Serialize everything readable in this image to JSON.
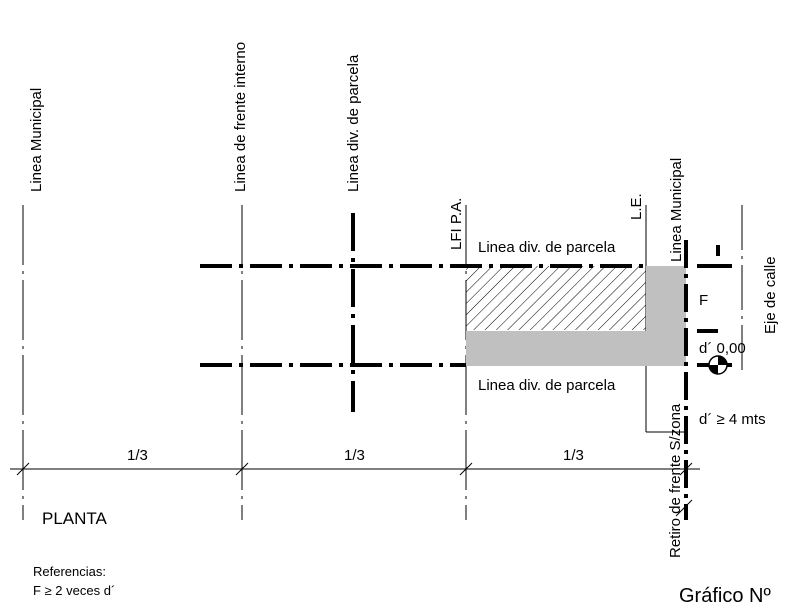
{
  "diagram": {
    "vertical_labels": {
      "linea_municipal_left": "Linea Municipal",
      "linea_frente_interno": "Linea de frente interno",
      "linea_div_parcela_top": "Linea div. de parcela",
      "lfi_pa": "LFI P.A.",
      "le": "L.E.",
      "linea_municipal_right": "Linea Municipal",
      "eje_de_calle": "Eje de calle",
      "retiro_frente": "Retiro de frente S/zona"
    },
    "horizontal_labels": {
      "linea_div_parcela_upper": "Linea div. de parcela",
      "linea_div_parcela_lower": "Linea div. de parcela",
      "f": "F",
      "d_level": "d´ 0,00",
      "d_min": "d´ ≥ 4 mts"
    },
    "dimension_labels": [
      "1/3",
      "1/3",
      "1/3"
    ],
    "planta": "PLANTA",
    "referencias_title": "Referencias:",
    "referencias_item": "F ≥ 2 veces d´",
    "grafico": "Gráfico Nº",
    "colors": {
      "line": "#000000",
      "fill_gray": "#c0c0c0",
      "background": "#ffffff"
    }
  }
}
